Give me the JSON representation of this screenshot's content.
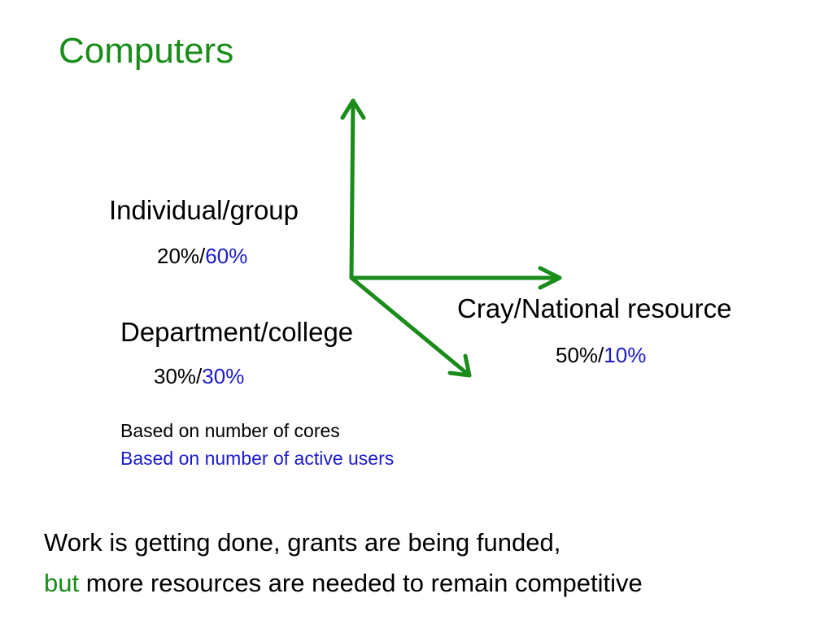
{
  "title": "Computers",
  "colors": {
    "title": "#1a8c1a",
    "arrow": "#1a8c1a",
    "secondary_metric": "#1a1acc",
    "emphasis": "#1a8c1a"
  },
  "nodes": {
    "individual": {
      "label": "Individual/group",
      "cores": "20%",
      "sep": "/",
      "users": "60%"
    },
    "department": {
      "label": "Department/college",
      "cores": "30%",
      "sep": "/",
      "users": "30%"
    },
    "national": {
      "label": "Cray/National resource",
      "cores": "50%",
      "sep": "/",
      "users": "10%"
    }
  },
  "legend": {
    "cores": "Based on number of cores",
    "users": "Based on number of active users"
  },
  "footer": {
    "line1": "Work is getting done, grants are being funded,",
    "line2_highlight": "but",
    "line2_rest": " more resources are needed to remain competitive"
  }
}
